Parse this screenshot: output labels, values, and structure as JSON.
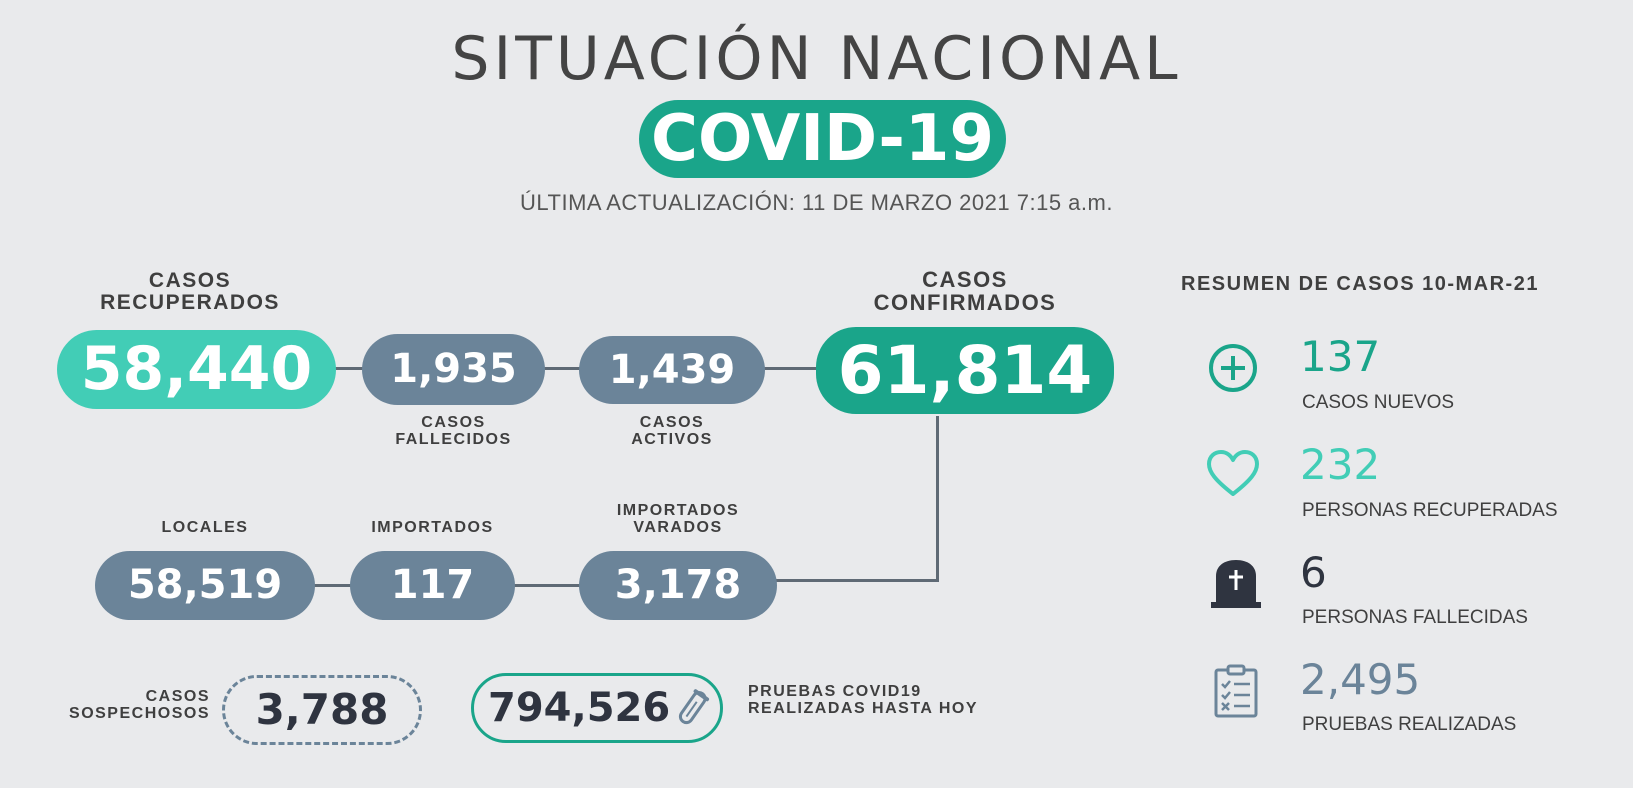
{
  "header": {
    "title": "SITUACIÓN NACIONAL",
    "badge": "COVID-19",
    "updated": "ÚLTIMA ACTUALIZACIÓN: 11 DE MARZO 2021 7:15 a.m."
  },
  "main": {
    "recuperados": {
      "label_1": "CASOS",
      "label_2": "RECUPERADOS",
      "value": "58,440"
    },
    "fallecidos": {
      "label_1": "CASOS",
      "label_2": "FALLECIDOS",
      "value": "1,935"
    },
    "activos": {
      "label_1": "CASOS",
      "label_2": "ACTIVOS",
      "value": "1,439"
    },
    "confirmados": {
      "label_1": "CASOS",
      "label_2": "CONFIRMADOS",
      "value": "61,814"
    },
    "locales": {
      "label": "LOCALES",
      "value": "58,519"
    },
    "importados": {
      "label": "IMPORTADOS",
      "value": "117"
    },
    "varados": {
      "label_1": "IMPORTADOS",
      "label_2": "VARADOS",
      "value": "3,178"
    },
    "sospechosos": {
      "label_1": "CASOS",
      "label_2": "SOSPECHOSOS",
      "value": "3,788"
    },
    "pruebas": {
      "value": "794,526",
      "label_1": "PRUEBAS COVID19",
      "label_2": "REALIZADAS HASTA HOY"
    }
  },
  "summary": {
    "title": "RESUMEN DE CASOS 10-MAR-21",
    "items": [
      {
        "icon": "plus-circle-icon",
        "value": "137",
        "label": "CASOS NUEVOS",
        "color": "#1aa58a"
      },
      {
        "icon": "heart-icon",
        "value": "232",
        "label": "PERSONAS RECUPERADAS",
        "color": "#42cdb6"
      },
      {
        "icon": "tombstone-icon",
        "value": "6",
        "label": "PERSONAS FALLECIDAS",
        "color": "#2f3440"
      },
      {
        "icon": "clipboard-icon",
        "value": "2,495",
        "label": "PRUEBAS REALIZADAS",
        "color": "#6b8499"
      }
    ]
  },
  "colors": {
    "accent": "#1aa58a",
    "aqua": "#42cdb6",
    "slate": "#6b8499",
    "background": "#e9eaec"
  }
}
